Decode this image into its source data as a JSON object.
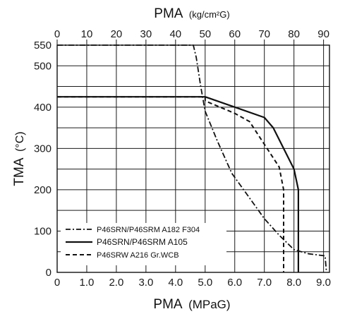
{
  "chart_data": {
    "type": "line",
    "x_bottom": {
      "label_main": "PMA",
      "label_unit": "(MPaG)",
      "range": [
        0,
        9.2
      ],
      "ticks": [
        {
          "v": 0,
          "t": "0"
        },
        {
          "v": 1,
          "t": "1.0"
        },
        {
          "v": 2,
          "t": "2.0"
        },
        {
          "v": 3,
          "t": "3.0"
        },
        {
          "v": 4,
          "t": "4.0"
        },
        {
          "v": 5,
          "t": "5.0"
        },
        {
          "v": 6,
          "t": "6.0"
        },
        {
          "v": 7,
          "t": "7.0"
        },
        {
          "v": 8,
          "t": "8.0"
        },
        {
          "v": 9,
          "t": "9.0"
        }
      ]
    },
    "x_top": {
      "label_main": "PMA",
      "label_unit": "(kg/cm²G)",
      "ticks": [
        "0",
        "10",
        "20",
        "30",
        "40",
        "50",
        "60",
        "70",
        "80",
        "90"
      ]
    },
    "y": {
      "label_main": "TMA",
      "label_unit": "(°C)",
      "range": [
        0,
        560
      ],
      "ticks": [
        {
          "v": 0,
          "t": "0"
        },
        {
          "v": 100,
          "t": "100"
        },
        {
          "v": 200,
          "t": "200"
        },
        {
          "v": 300,
          "t": "300"
        },
        {
          "v": 400,
          "t": "400"
        },
        {
          "v": 500,
          "t": "500"
        },
        {
          "v": 550,
          "t": "550"
        }
      ]
    },
    "grid": true,
    "legend_position": "bottom-left",
    "series": [
      {
        "name": "P46SRN/P46SRM A182 F304",
        "style": "dashdot",
        "points": [
          [
            0,
            550
          ],
          [
            4.6,
            550
          ],
          [
            4.7,
            520
          ],
          [
            4.85,
            450
          ],
          [
            5.0,
            390
          ],
          [
            5.4,
            320
          ],
          [
            5.9,
            240
          ],
          [
            6.5,
            180
          ],
          [
            7.0,
            130
          ],
          [
            7.5,
            90
          ],
          [
            8.0,
            55
          ],
          [
            8.5,
            45
          ],
          [
            9.05,
            40
          ],
          [
            9.1,
            0
          ]
        ]
      },
      {
        "name": "P46SRN/P46SRM A105",
        "style": "solid",
        "points": [
          [
            0,
            425
          ],
          [
            5.0,
            425
          ],
          [
            6.0,
            400
          ],
          [
            7.0,
            375
          ],
          [
            7.3,
            350
          ],
          [
            8.0,
            250
          ],
          [
            8.15,
            200
          ],
          [
            8.15,
            0
          ]
        ]
      },
      {
        "name": "P46SRW A216 Gr.WCB",
        "style": "dashed",
        "points": [
          [
            0,
            425
          ],
          [
            5.0,
            425
          ],
          [
            5.0,
            415
          ],
          [
            6.0,
            385
          ],
          [
            6.5,
            365
          ],
          [
            7.0,
            310
          ],
          [
            7.5,
            255
          ],
          [
            7.65,
            200
          ],
          [
            7.65,
            0
          ]
        ]
      }
    ]
  },
  "colors": {
    "line": "#111111",
    "grid": "#1a1a1a",
    "background": "#ffffff"
  }
}
